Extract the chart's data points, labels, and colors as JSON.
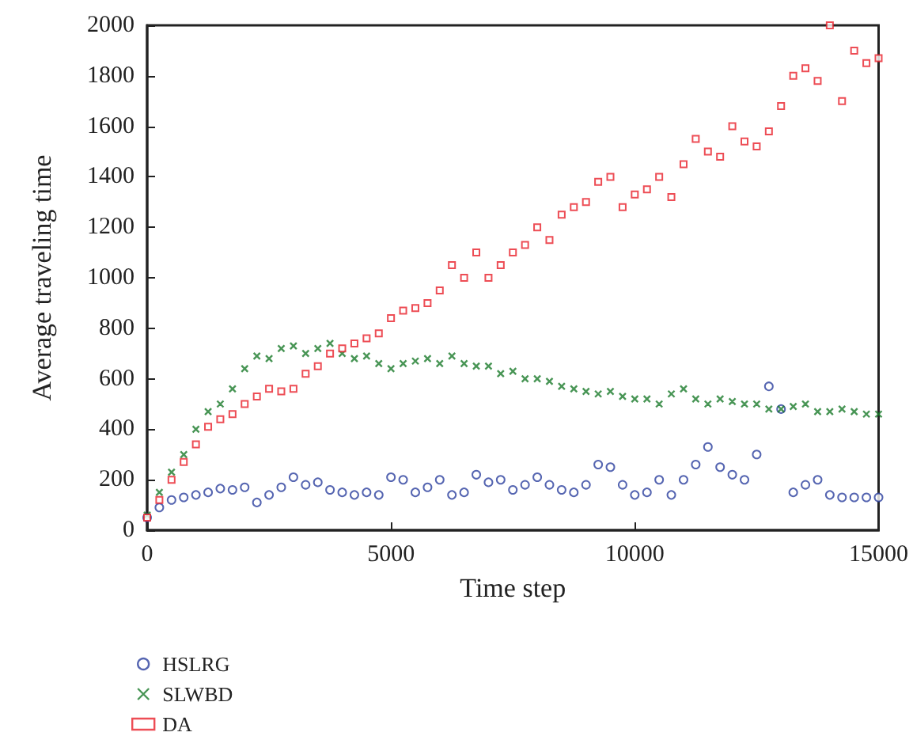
{
  "chart_data": {
    "type": "scatter",
    "xlabel": "Time step",
    "ylabel": "Average traveling time",
    "xlim": [
      0,
      15000
    ],
    "xticks": [
      0,
      5000,
      10000,
      15000
    ],
    "ylim": [
      0,
      2000
    ],
    "yticks": [
      0,
      200,
      400,
      600,
      800,
      1000,
      1200,
      1400,
      1600,
      1800,
      2000
    ],
    "grid": false,
    "legend": "bottom left",
    "x": [
      0,
      250,
      500,
      750,
      1000,
      1250,
      1500,
      1750,
      2000,
      2250,
      2500,
      2750,
      3000,
      3250,
      3500,
      3750,
      4000,
      4250,
      4500,
      4750,
      5000,
      5250,
      5500,
      5750,
      6000,
      6250,
      6500,
      6750,
      7000,
      7250,
      7500,
      7750,
      8000,
      8250,
      8500,
      8750,
      9000,
      9250,
      9500,
      9750,
      10000,
      10250,
      10500,
      10750,
      11000,
      11250,
      11500,
      11750,
      12000,
      12250,
      12500,
      12750,
      13000,
      13250,
      13500,
      13750,
      14000,
      14250,
      14500,
      14750,
      15000
    ],
    "series": [
      {
        "name": "HSLRG",
        "color": "#2b3f9e",
        "marker": "circle",
        "values": [
          50,
          90,
          120,
          130,
          140,
          150,
          165,
          160,
          170,
          110,
          140,
          170,
          210,
          180,
          190,
          160,
          150,
          140,
          150,
          140,
          210,
          200,
          150,
          170,
          200,
          140,
          150,
          220,
          190,
          200,
          160,
          180,
          210,
          180,
          160,
          150,
          180,
          260,
          250,
          180,
          140,
          150,
          200,
          140,
          200,
          260,
          330,
          250,
          220,
          200,
          300,
          570,
          480,
          150,
          180,
          200,
          140,
          130,
          130,
          130,
          130
        ]
      },
      {
        "name": "SLWBD",
        "color": "#1a7a2a",
        "marker": "cross",
        "values": [
          60,
          150,
          230,
          300,
          400,
          470,
          500,
          560,
          640,
          690,
          680,
          720,
          730,
          700,
          720,
          740,
          700,
          680,
          690,
          660,
          640,
          660,
          670,
          680,
          660,
          690,
          660,
          650,
          650,
          620,
          630,
          600,
          600,
          590,
          570,
          560,
          550,
          540,
          550,
          530,
          520,
          520,
          500,
          540,
          560,
          520,
          500,
          520,
          510,
          500,
          500,
          480,
          480,
          490,
          500,
          470,
          470,
          480,
          470,
          460,
          460
        ]
      },
      {
        "name": "DA",
        "color": "#e8202a",
        "marker": "square",
        "values": [
          50,
          120,
          200,
          270,
          340,
          410,
          440,
          460,
          500,
          530,
          560,
          550,
          560,
          620,
          650,
          700,
          720,
          740,
          760,
          780,
          840,
          870,
          880,
          900,
          950,
          1050,
          1000,
          1100,
          1000,
          1050,
          1100,
          1130,
          1200,
          1150,
          1250,
          1280,
          1300,
          1380,
          1400,
          1280,
          1330,
          1350,
          1400,
          1320,
          1450,
          1550,
          1500,
          1480,
          1600,
          1540,
          1520,
          1580,
          1680,
          1800,
          1830,
          1780,
          2000,
          1700,
          1900,
          1850,
          1870
        ]
      }
    ]
  }
}
